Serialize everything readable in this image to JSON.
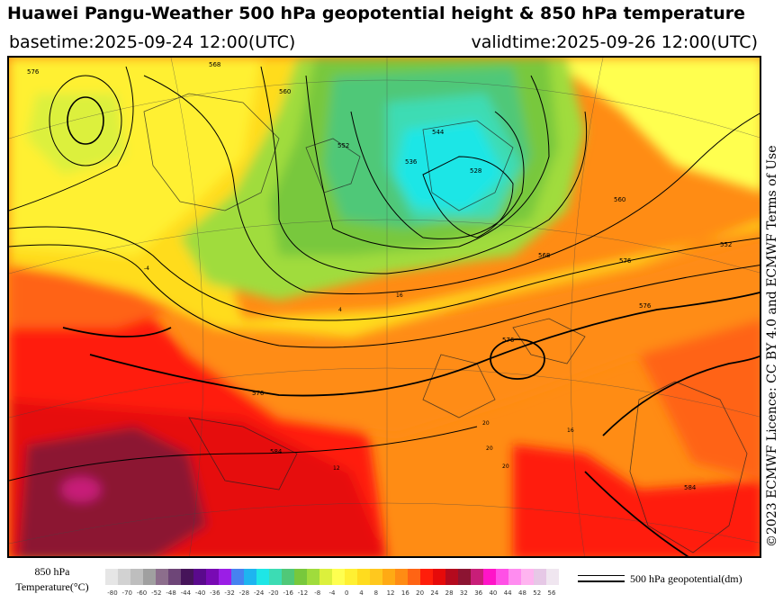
{
  "header": {
    "title": "Huawei Pangu-Weather 500 hPa geopotential height & 850 hPa temperature",
    "basetime": "basetime:2025-09-24 12:00(UTC)",
    "validtime": "validtime:2025-09-26 12:00(UTC)"
  },
  "licence": "©2023 ECMWF Licence: CC BY 4.0 and ECMWF Terms of Use",
  "legend": {
    "temperature_label_line1": "850 hPa",
    "temperature_label_line2": "Temperature(°C)",
    "colors": [
      "#e6e6e6",
      "#d2d2d2",
      "#bebebe",
      "#a0a0a0",
      "#8c6e8c",
      "#6e4678",
      "#46145a",
      "#5a0a8c",
      "#780ab4",
      "#9b1ee6",
      "#4682f0",
      "#1eb4f0",
      "#1ee6e6",
      "#3cdcb4",
      "#50c878",
      "#78c83c",
      "#a0dc3c",
      "#dcf03c",
      "#ffff50",
      "#fff032",
      "#ffdc1e",
      "#ffc81e",
      "#ffaa14",
      "#ff8c14",
      "#ff6414",
      "#ff1e0a",
      "#e60a0a",
      "#b40a1e",
      "#8c1432",
      "#c81e78",
      "#ff14c8",
      "#ff50e6",
      "#ff8cf0",
      "#ffb4f0",
      "#e6c8e6",
      "#f0e6f0"
    ],
    "ticks": [
      "-80",
      "-70",
      "-60",
      "-52",
      "-48",
      "-44",
      "-40",
      "-36",
      "-32",
      "-28",
      "-24",
      "-20",
      "-16",
      "-12",
      "-8",
      "-4",
      "0",
      "4",
      "8",
      "12",
      "16",
      "20",
      "24",
      "28",
      "32",
      "36",
      "40",
      "44",
      "48",
      "52",
      "56"
    ],
    "geopotential_label": "500 hPa geopotential(dm)"
  },
  "map": {
    "contour_labels": [
      {
        "text": "576"
      },
      {
        "text": "568"
      },
      {
        "text": "560"
      },
      {
        "text": "552"
      },
      {
        "text": "544"
      },
      {
        "text": "536"
      },
      {
        "text": "528"
      },
      {
        "text": "568"
      },
      {
        "text": "576"
      },
      {
        "text": "584"
      },
      {
        "text": "576"
      },
      {
        "text": "576"
      },
      {
        "text": "584"
      },
      {
        "text": "560"
      },
      {
        "text": "552"
      },
      {
        "text": "576"
      }
    ],
    "temp_labels": [
      {
        "text": "16"
      },
      {
        "text": "20"
      },
      {
        "text": "20"
      },
      {
        "text": "20"
      },
      {
        "text": "12"
      },
      {
        "text": "16"
      },
      {
        "text": "-4"
      },
      {
        "text": "4"
      }
    ]
  }
}
